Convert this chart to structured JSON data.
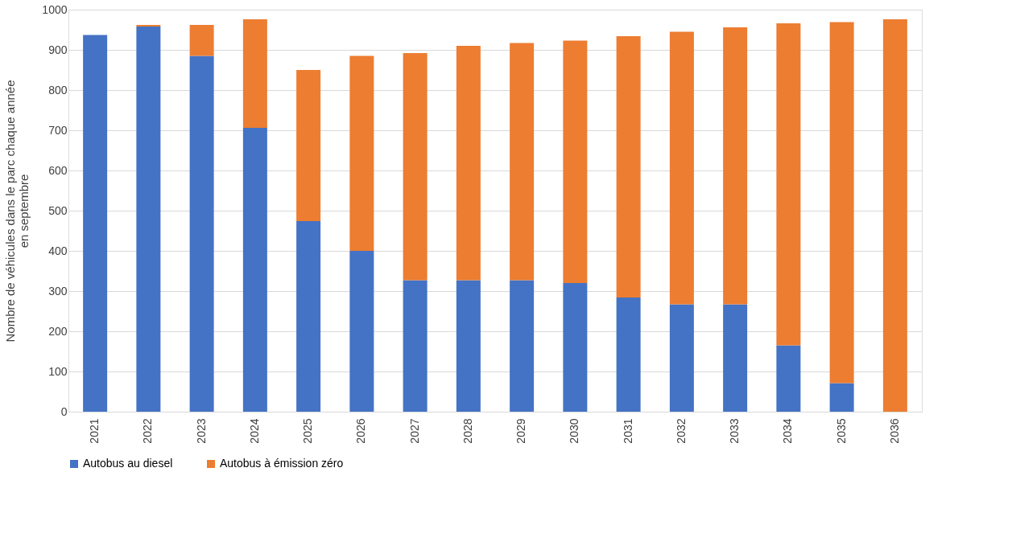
{
  "chart_data": {
    "type": "bar",
    "stacked": true,
    "ylabel": "Nombre de véhicules dans le parc chaque année\nen septembre",
    "categories": [
      "2021",
      "2022",
      "2023",
      "2024",
      "2025",
      "2026",
      "2027",
      "2028",
      "2029",
      "2030",
      "2031",
      "2032",
      "2033",
      "2034",
      "2035",
      "2036"
    ],
    "series": [
      {
        "name": "Autobus au diesel",
        "color": "#4472c4",
        "values": [
          937,
          958,
          885,
          706,
          474,
          400,
          327,
          327,
          327,
          320,
          284,
          267,
          267,
          165,
          71,
          0
        ]
      },
      {
        "name": "Autobus à émission zéro",
        "color": "#ed7d31",
        "values": [
          0,
          4,
          77,
          270,
          376,
          485,
          565,
          583,
          590,
          603,
          650,
          678,
          689,
          801,
          898,
          976
        ]
      }
    ],
    "ylim": [
      0,
      1000
    ],
    "yticks": [
      0,
      100,
      200,
      300,
      400,
      500,
      600,
      700,
      800,
      900,
      1000
    ],
    "grid": "y",
    "legend": "bottom"
  }
}
